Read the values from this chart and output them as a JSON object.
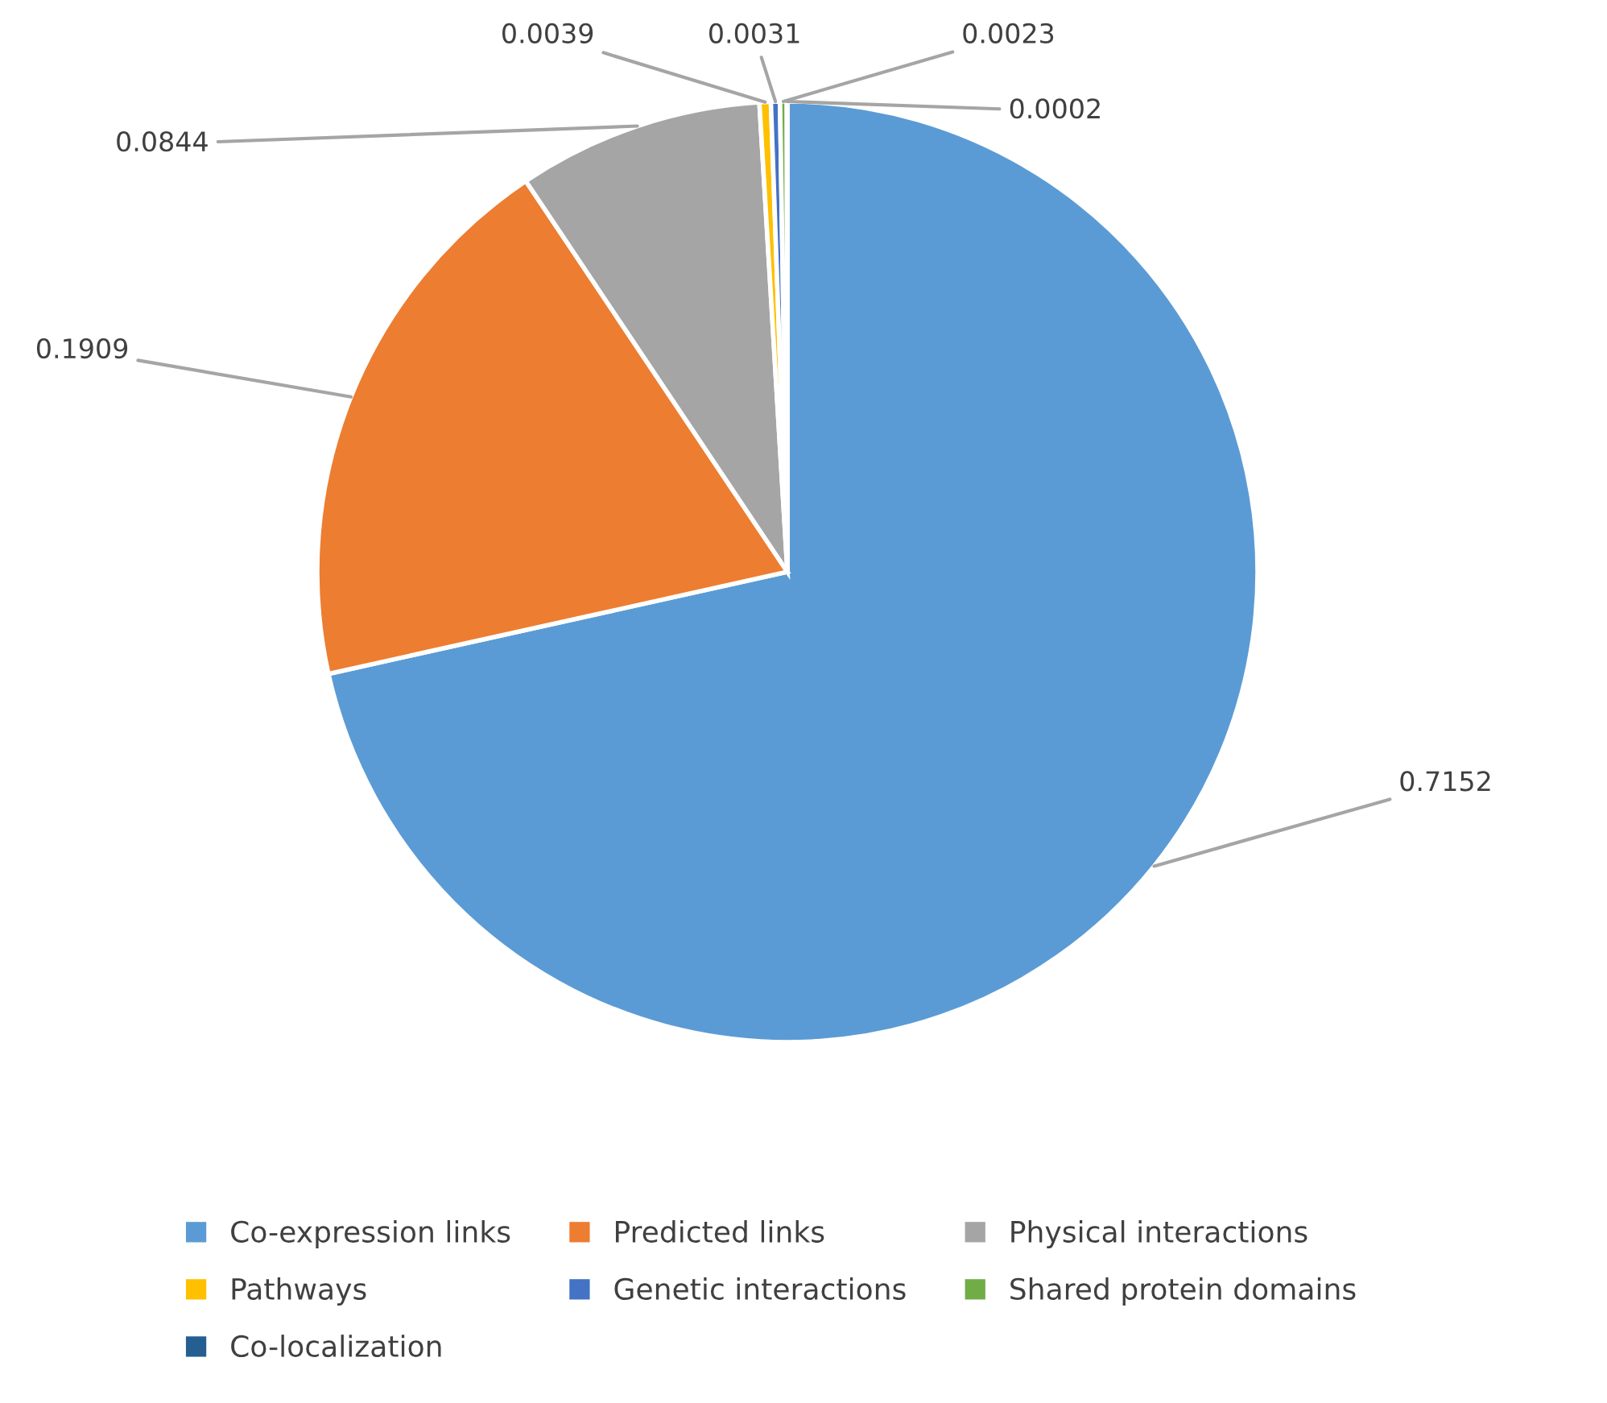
{
  "chart_data": {
    "type": "pie",
    "categories": [
      "Co-expression links",
      "Predicted links",
      "Physical interactions",
      "Pathways",
      "Genetic interactions",
      "Shared protein domains",
      "Co-localization"
    ],
    "values": [
      0.7152,
      0.1909,
      0.0844,
      0.0039,
      0.0031,
      0.0023,
      0.0002
    ],
    "colors": [
      "#5b9bd5",
      "#ed7d31",
      "#a5a5a5",
      "#ffc000",
      "#4472c4",
      "#70ad47",
      "#255e91"
    ],
    "data_labels": true,
    "legend": "bottom"
  }
}
